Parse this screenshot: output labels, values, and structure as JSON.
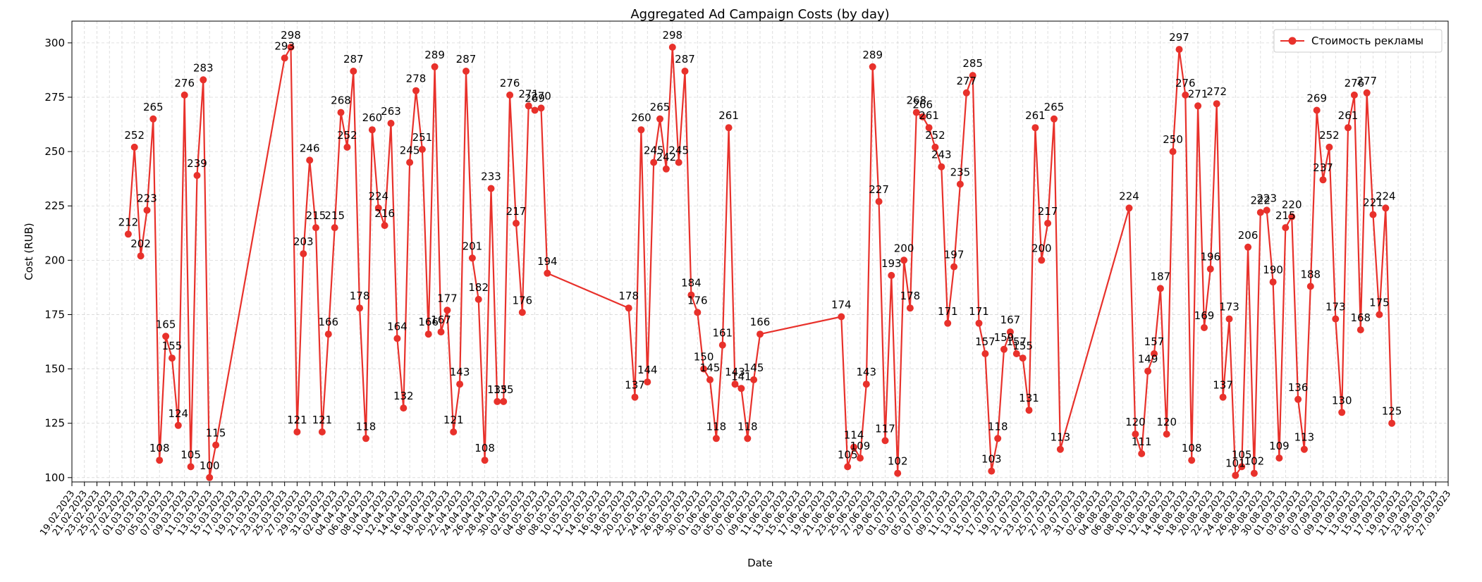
{
  "chart_data": {
    "type": "line",
    "title": "Aggregated Ad Campaign Costs (by day)",
    "xlabel": "Date",
    "ylabel": "Cost (RUB)",
    "xlim": [
      "2023-02-19",
      "2023-09-27"
    ],
    "ylim": [
      98,
      310
    ],
    "yticks": [
      100,
      125,
      150,
      175,
      200,
      225,
      250,
      275,
      300
    ],
    "xtick_step_days": 2,
    "x_tick_format": "DD.MM.YYYY",
    "grid": true,
    "legend_position": "upper right",
    "colors": {
      "series": "#e8312b"
    },
    "series": [
      {
        "name": "Стоимость рекламы",
        "points": [
          [
            "2023-02-28",
            212
          ],
          [
            "2023-03-01",
            252
          ],
          [
            "2023-03-02",
            202
          ],
          [
            "2023-03-03",
            223
          ],
          [
            "2023-03-04",
            265
          ],
          [
            "2023-03-05",
            108
          ],
          [
            "2023-03-06",
            165
          ],
          [
            "2023-03-07",
            155
          ],
          [
            "2023-03-08",
            124
          ],
          [
            "2023-03-09",
            276
          ],
          [
            "2023-03-10",
            105
          ],
          [
            "2023-03-11",
            239
          ],
          [
            "2023-03-12",
            283
          ],
          [
            "2023-03-13",
            100
          ],
          [
            "2023-03-14",
            115
          ],
          [
            "2023-03-25",
            293
          ],
          [
            "2023-03-26",
            298
          ],
          [
            "2023-03-27",
            121
          ],
          [
            "2023-03-28",
            203
          ],
          [
            "2023-03-29",
            246
          ],
          [
            "2023-03-30",
            215
          ],
          [
            "2023-03-31",
            121
          ],
          [
            "2023-04-01",
            166
          ],
          [
            "2023-04-02",
            215
          ],
          [
            "2023-04-03",
            268
          ],
          [
            "2023-04-04",
            252
          ],
          [
            "2023-04-05",
            287
          ],
          [
            "2023-04-06",
            178
          ],
          [
            "2023-04-07",
            118
          ],
          [
            "2023-04-08",
            260
          ],
          [
            "2023-04-09",
            224
          ],
          [
            "2023-04-10",
            216
          ],
          [
            "2023-04-11",
            263
          ],
          [
            "2023-04-12",
            164
          ],
          [
            "2023-04-13",
            132
          ],
          [
            "2023-04-14",
            245
          ],
          [
            "2023-04-15",
            278
          ],
          [
            "2023-04-16",
            251
          ],
          [
            "2023-04-17",
            166
          ],
          [
            "2023-04-18",
            289
          ],
          [
            "2023-04-19",
            167
          ],
          [
            "2023-04-20",
            177
          ],
          [
            "2023-04-21",
            121
          ],
          [
            "2023-04-22",
            143
          ],
          [
            "2023-04-23",
            287
          ],
          [
            "2023-04-24",
            201
          ],
          [
            "2023-04-25",
            182
          ],
          [
            "2023-04-26",
            108
          ],
          [
            "2023-04-27",
            233
          ],
          [
            "2023-04-28",
            135
          ],
          [
            "2023-04-29",
            135
          ],
          [
            "2023-04-30",
            276
          ],
          [
            "2023-05-01",
            217
          ],
          [
            "2023-05-02",
            176
          ],
          [
            "2023-05-03",
            271
          ],
          [
            "2023-05-04",
            269
          ],
          [
            "2023-05-05",
            270
          ],
          [
            "2023-05-06",
            194
          ],
          [
            "2023-05-19",
            178
          ],
          [
            "2023-05-20",
            137
          ],
          [
            "2023-05-21",
            260
          ],
          [
            "2023-05-22",
            144
          ],
          [
            "2023-05-23",
            245
          ],
          [
            "2023-05-24",
            265
          ],
          [
            "2023-05-25",
            242
          ],
          [
            "2023-05-26",
            298
          ],
          [
            "2023-05-27",
            245
          ],
          [
            "2023-05-28",
            287
          ],
          [
            "2023-05-29",
            184
          ],
          [
            "2023-05-30",
            176
          ],
          [
            "2023-05-31",
            150
          ],
          [
            "2023-06-01",
            145
          ],
          [
            "2023-06-02",
            118
          ],
          [
            "2023-06-03",
            161
          ],
          [
            "2023-06-04",
            261
          ],
          [
            "2023-06-05",
            143
          ],
          [
            "2023-06-06",
            141
          ],
          [
            "2023-06-07",
            118
          ],
          [
            "2023-06-08",
            145
          ],
          [
            "2023-06-09",
            166
          ],
          [
            "2023-06-22",
            174
          ],
          [
            "2023-06-23",
            105
          ],
          [
            "2023-06-24",
            114
          ],
          [
            "2023-06-25",
            109
          ],
          [
            "2023-06-26",
            143
          ],
          [
            "2023-06-27",
            289
          ],
          [
            "2023-06-28",
            227
          ],
          [
            "2023-06-29",
            117
          ],
          [
            "2023-06-30",
            193
          ],
          [
            "2023-07-01",
            102
          ],
          [
            "2023-07-02",
            200
          ],
          [
            "2023-07-03",
            178
          ],
          [
            "2023-07-04",
            268
          ],
          [
            "2023-07-05",
            266
          ],
          [
            "2023-07-06",
            261
          ],
          [
            "2023-07-07",
            252
          ],
          [
            "2023-07-08",
            243
          ],
          [
            "2023-07-09",
            171
          ],
          [
            "2023-07-10",
            197
          ],
          [
            "2023-07-11",
            235
          ],
          [
            "2023-07-12",
            277
          ],
          [
            "2023-07-13",
            285
          ],
          [
            "2023-07-14",
            171
          ],
          [
            "2023-07-15",
            157
          ],
          [
            "2023-07-16",
            103
          ],
          [
            "2023-07-17",
            118
          ],
          [
            "2023-07-18",
            159
          ],
          [
            "2023-07-19",
            167
          ],
          [
            "2023-07-20",
            157
          ],
          [
            "2023-07-21",
            155
          ],
          [
            "2023-07-22",
            131
          ],
          [
            "2023-07-23",
            261
          ],
          [
            "2023-07-24",
            200
          ],
          [
            "2023-07-25",
            217
          ],
          [
            "2023-07-26",
            265
          ],
          [
            "2023-07-27",
            113
          ],
          [
            "2023-08-07",
            224
          ],
          [
            "2023-08-08",
            120
          ],
          [
            "2023-08-09",
            111
          ],
          [
            "2023-08-10",
            149
          ],
          [
            "2023-08-11",
            157
          ],
          [
            "2023-08-12",
            187
          ],
          [
            "2023-08-13",
            120
          ],
          [
            "2023-08-14",
            250
          ],
          [
            "2023-08-15",
            297
          ],
          [
            "2023-08-16",
            276
          ],
          [
            "2023-08-17",
            108
          ],
          [
            "2023-08-18",
            271
          ],
          [
            "2023-08-19",
            169
          ],
          [
            "2023-08-20",
            196
          ],
          [
            "2023-08-21",
            272
          ],
          [
            "2023-08-22",
            137
          ],
          [
            "2023-08-23",
            173
          ],
          [
            "2023-08-24",
            101
          ],
          [
            "2023-08-25",
            105
          ],
          [
            "2023-08-26",
            206
          ],
          [
            "2023-08-27",
            102
          ],
          [
            "2023-08-28",
            222
          ],
          [
            "2023-08-29",
            223
          ],
          [
            "2023-08-30",
            190
          ],
          [
            "2023-08-31",
            109
          ],
          [
            "2023-09-01",
            215
          ],
          [
            "2023-09-02",
            220
          ],
          [
            "2023-09-03",
            136
          ],
          [
            "2023-09-04",
            113
          ],
          [
            "2023-09-05",
            188
          ],
          [
            "2023-09-06",
            269
          ],
          [
            "2023-09-07",
            237
          ],
          [
            "2023-09-08",
            252
          ],
          [
            "2023-09-09",
            173
          ],
          [
            "2023-09-10",
            130
          ],
          [
            "2023-09-11",
            261
          ],
          [
            "2023-09-12",
            276
          ],
          [
            "2023-09-13",
            168
          ],
          [
            "2023-09-14",
            277
          ],
          [
            "2023-09-15",
            221
          ],
          [
            "2023-09-16",
            175
          ],
          [
            "2023-09-17",
            224
          ],
          [
            "2023-09-18",
            125
          ]
        ]
      }
    ]
  }
}
